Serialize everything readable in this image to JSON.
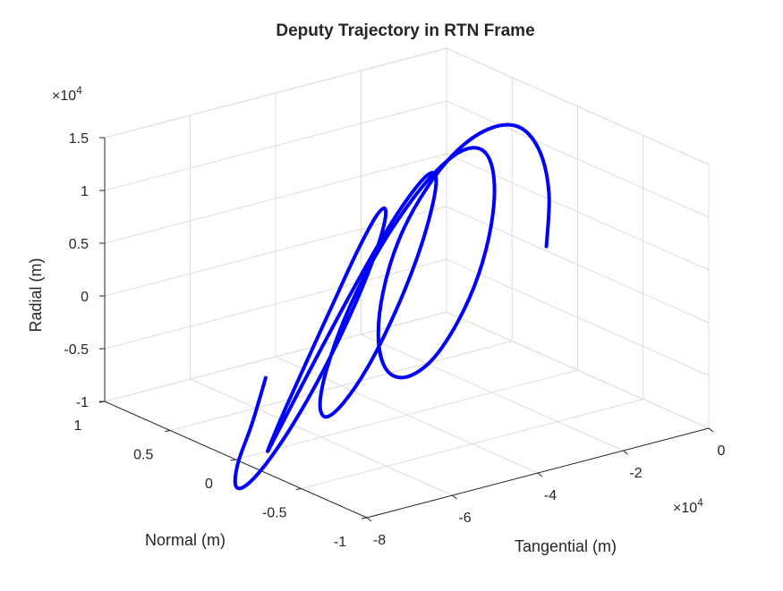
{
  "chart_data": {
    "type": "line",
    "projection": "3d",
    "title": "Deputy Trajectory in RTN Frame",
    "xlabel": "Tangential (m)",
    "ylabel": "Normal (m)",
    "zlabel": "Radial (m)",
    "x_exponent": "×10",
    "x_exponent_power": "4",
    "z_exponent": "×10",
    "z_exponent_power": "4",
    "xlim": [
      -80000,
      0
    ],
    "ylim": [
      -1,
      1
    ],
    "zlim": [
      -10000,
      15000
    ],
    "x_ticks": [
      {
        "value": -80000,
        "label": "-8"
      },
      {
        "value": -60000,
        "label": "-6"
      },
      {
        "value": -40000,
        "label": "-4"
      },
      {
        "value": -20000,
        "label": "-2"
      },
      {
        "value": 0,
        "label": "0"
      }
    ],
    "y_ticks": [
      {
        "value": -1,
        "label": "-1"
      },
      {
        "value": -0.5,
        "label": "-0.5"
      },
      {
        "value": 0,
        "label": "0"
      },
      {
        "value": 0.5,
        "label": "0.5"
      },
      {
        "value": 1,
        "label": "1"
      }
    ],
    "z_ticks": [
      {
        "value": -10000,
        "label": "-1"
      },
      {
        "value": -5000,
        "label": "-0.5"
      },
      {
        "value": 0,
        "label": "0"
      },
      {
        "value": 5000,
        "label": "0.5"
      },
      {
        "value": 10000,
        "label": "1"
      },
      {
        "value": 15000,
        "label": "1.5"
      }
    ],
    "grid": true,
    "series": [
      {
        "color": "#0000ff",
        "x": [
          -73000,
          -76200,
          -79500,
          -80000,
          -77600,
          -72800,
          -66300,
          -59300,
          -52900,
          -48000,
          -45300,
          -45100,
          -47300,
          -51600,
          -57200,
          -63200,
          -68400,
          -71700,
          -72500,
          -70400,
          -65700,
          -59100,
          -51800,
          -44600,
          -38600,
          -34600,
          -33100,
          -34300,
          -37800,
          -43100,
          -49100,
          -54800,
          -58800,
          -60300,
          -58800,
          -54600,
          -48200,
          -40600,
          -33000,
          -26500,
          -21800,
          -19600,
          -20100,
          -23200,
          -28300,
          -34300,
          -40200,
          -44600,
          -46600,
          -45600,
          -41800,
          -35500,
          -27800,
          -20000,
          -13400,
          -8800,
          -6700,
          -7300
        ],
        "y": [
          0.0,
          0.0,
          0.0,
          0.0,
          0.0,
          0.0,
          0.0,
          0.0,
          0.0,
          0.0,
          0.0,
          0.0,
          0.0,
          0.0,
          0.0,
          0.0,
          0.0,
          0.0,
          0.0,
          0.0,
          0.0,
          0.0,
          0.0,
          0.0,
          0.0,
          0.0,
          0.0,
          0.0,
          0.0,
          0.0,
          0.0,
          0.0,
          0.0,
          0.0,
          0.0,
          0.0,
          0.0,
          0.0,
          0.0,
          0.0,
          0.0,
          0.0,
          0.0,
          0.0,
          0.0,
          0.0,
          0.0,
          0.0,
          0.0,
          0.0,
          0.0,
          0.0,
          0.0,
          0.0,
          0.0,
          0.0,
          0.0,
          0.0
        ],
        "z": [
          -3000,
          -7000,
          -10400,
          -12500,
          -12700,
          -11100,
          -7900,
          -3600,
          1100,
          5400,
          8600,
          10100,
          9500,
          6700,
          2400,
          -2300,
          -6400,
          -9200,
          -10000,
          -8600,
          -5400,
          -1000,
          3700,
          8000,
          11000,
          12300,
          11600,
          8700,
          4400,
          -300,
          -4500,
          -7300,
          -8200,
          -6900,
          -3800,
          600,
          5300,
          9400,
          12400,
          13700,
          13000,
          10300,
          6200,
          1500,
          -2600,
          -5500,
          -6400,
          -5300,
          -2300,
          2100,
          6800,
          10900,
          13900,
          15100,
          14400,
          11600,
          7400,
          2500
        ]
      }
    ]
  }
}
